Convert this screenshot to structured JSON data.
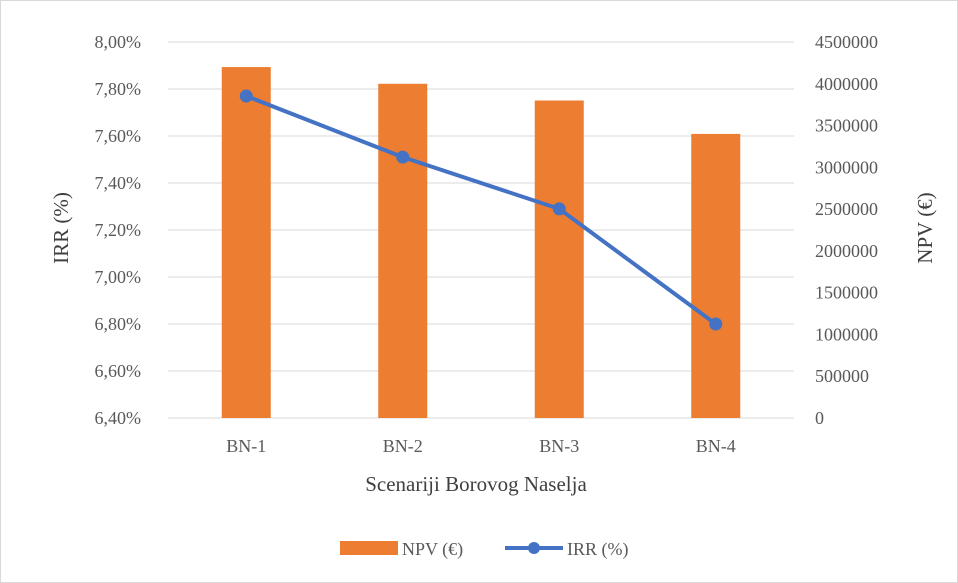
{
  "chart_data": {
    "type": "bar+line",
    "categories": [
      "BN-1",
      "BN-2",
      "BN-3",
      "BN-4"
    ],
    "series": [
      {
        "name": "NPV (€)",
        "type": "bar",
        "axis": "right",
        "color": "#ED7D31",
        "values": [
          4200000,
          4000000,
          3800000,
          3400000
        ]
      },
      {
        "name": "IRR (%)",
        "type": "line",
        "axis": "left",
        "color": "#4472C4",
        "values": [
          0.0777,
          0.0751,
          0.0729,
          0.068
        ]
      }
    ],
    "xlabel": "Scenariji  Borovog Naselja",
    "ylabel_left": "IRR (%)",
    "ylabel_right": "NPV (€)",
    "y_left": {
      "min": 0.064,
      "max": 0.08,
      "ticks": [
        "6,40%",
        "6,60%",
        "6,80%",
        "7,00%",
        "7,20%",
        "7,40%",
        "7,60%",
        "7,80%",
        "8,00%"
      ]
    },
    "y_right": {
      "min": 0,
      "max": 4500000,
      "ticks": [
        "0",
        "500000",
        "1000000",
        "1500000",
        "2000000",
        "2500000",
        "3000000",
        "3500000",
        "4000000",
        "4500000"
      ]
    },
    "grid": true,
    "legend": "bottom"
  }
}
